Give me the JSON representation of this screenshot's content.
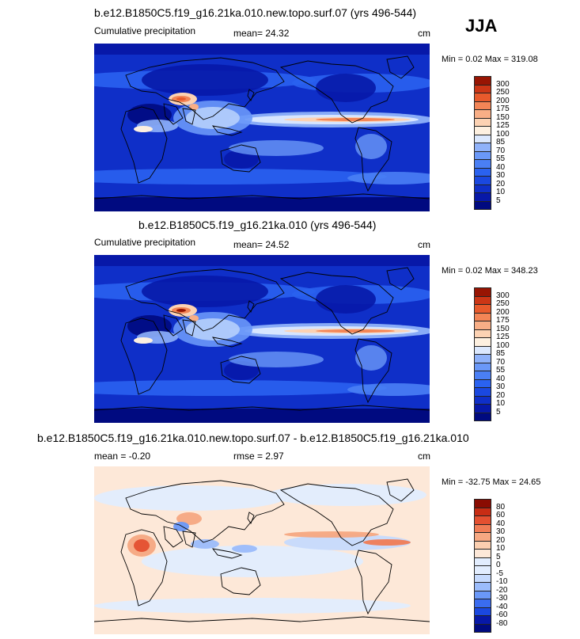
{
  "season": "JJA",
  "palette": {
    "precip": [
      "#000a80",
      "#0718a8",
      "#0f2fc8",
      "#1a48e0",
      "#2a62f0",
      "#4a7ff5",
      "#6a98f8",
      "#8fb2fa",
      "#b6cffc",
      "#dbe8fe",
      "#fdf0e0",
      "#fcd2b3",
      "#f8ae86",
      "#f38556",
      "#e85a2c",
      "#cc3616",
      "#981503"
    ],
    "diff": [
      "#000a80",
      "#0718a8",
      "#1a48e0",
      "#3a6cf0",
      "#6a98f8",
      "#9bbcfb",
      "#c6dafd",
      "#e2edfe",
      "#fde8d8",
      "#fbcfb0",
      "#f6a882",
      "#f07c55",
      "#e45030",
      "#c82d14",
      "#8a0c02"
    ]
  },
  "chart_data": [
    {
      "type": "heatmap",
      "title": "b.e12.B1850C5.f19_g16.21ka.010.new.topo.surf.07 (yrs 496-544)",
      "left_label": "Cumulative precipitation",
      "center_label": "mean=  24.32",
      "units": "cm",
      "min_max": "Min =   0.02 Max = 319.08",
      "levels": [
        "5",
        "10",
        "20",
        "30",
        "40",
        "55",
        "70",
        "85",
        "100",
        "125",
        "150",
        "175",
        "200",
        "250",
        "300"
      ],
      "field": "precip"
    },
    {
      "type": "heatmap",
      "title": "b.e12.B1850C5.f19_g16.21ka.010 (yrs 496-544)",
      "left_label": "Cumulative precipitation",
      "center_label": "mean=  24.52",
      "units": "cm",
      "min_max": "Min =   0.02 Max = 348.23",
      "levels": [
        "5",
        "10",
        "20",
        "30",
        "40",
        "55",
        "70",
        "85",
        "100",
        "125",
        "150",
        "175",
        "200",
        "250",
        "300"
      ],
      "field": "precip"
    },
    {
      "type": "heatmap",
      "title": "b.e12.B1850C5.f19_g16.21ka.010.new.topo.surf.07 - b.e12.B1850C5.f19_g16.21ka.010",
      "left_label": "mean =  -0.20",
      "center_label": "rmse =   2.97",
      "units": "cm",
      "min_max": "Min = -32.75 Max =  24.65",
      "levels": [
        "-80",
        "-60",
        "-40",
        "-30",
        "-20",
        "-10",
        "-5",
        "0",
        "5",
        "10",
        "20",
        "30",
        "40",
        "60",
        "80"
      ],
      "field": "diff"
    }
  ]
}
